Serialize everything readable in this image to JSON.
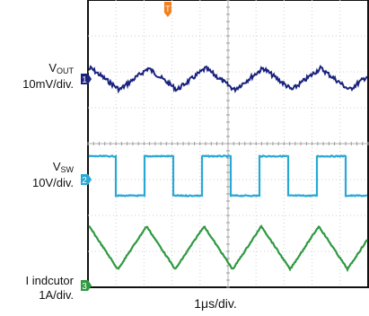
{
  "chart_data": {
    "type": "line",
    "title": "",
    "xlabel": "1μs/div.",
    "grid": "on",
    "x": {
      "divisions": 10
    },
    "series": [
      {
        "name_main": "V",
        "name_sub": "OUT",
        "scale": "10mV/div.",
        "marker": "1",
        "color": "#1a237e",
        "waveform": "ripple",
        "period_div": 2.05,
        "amplitude_div": 0.3,
        "baseline_div": 2.2
      },
      {
        "name_main": "V",
        "name_sub": "SW",
        "scale": "10V/div.",
        "marker": "2",
        "color": "#29a8d6",
        "waveform": "square",
        "period_div": 2.05,
        "duty": 0.5,
        "high_div": 4.35,
        "low_div": 5.45
      },
      {
        "name": "I indcutor",
        "scale": "1A/div.",
        "marker": "3",
        "color": "#2e9940",
        "waveform": "sawtooth",
        "period_div": 2.05,
        "peak_div": 6.3,
        "valley_div": 7.5
      }
    ],
    "trigger_marker": "T"
  }
}
